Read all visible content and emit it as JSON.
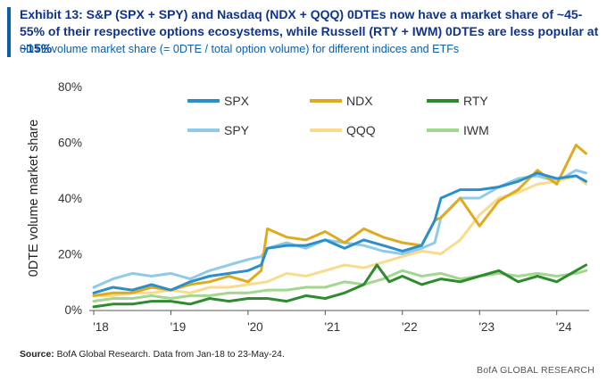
{
  "title": "Exhibit 13: S&P (SPX + SPY) and Nasdaq (NDX + QQQ) 0DTEs now have a market share of ~45-55% of their respective options ecosystems, while Russell (RTY + IWM) 0DTEs are less popular at ~15%",
  "subtitle": "0DTE volume market share (= 0DTE / total option volume) for different indices and ETFs",
  "source_label": "Source:",
  "source_text": "BofA Global Research.  Data from Jan-18 to 23-May-24.",
  "brand": "BofA GLOBAL RESEARCH",
  "chart_data": {
    "type": "line",
    "ylabel": "0DTE volume market share",
    "xlabel": "",
    "ylim": [
      0,
      80
    ],
    "xlim": [
      2018.0,
      2024.42
    ],
    "y_ticks": [
      0,
      20,
      40,
      60,
      80
    ],
    "y_tick_labels": [
      "0%",
      "20%",
      "40%",
      "60%",
      "80%"
    ],
    "x_ticks": [
      2018,
      2019,
      2020,
      2021,
      2022,
      2023,
      2024
    ],
    "x_tick_labels": [
      "'18",
      "'19",
      "'20",
      "'21",
      "'22",
      "'23",
      "'24"
    ],
    "grid": false,
    "legend_position": "top",
    "series": [
      {
        "name": "SPX",
        "color": "#2b8fc9",
        "width": 3,
        "x": [
          2018.0,
          2018.25,
          2018.5,
          2018.75,
          2019.0,
          2019.25,
          2019.5,
          2019.75,
          2020.0,
          2020.17,
          2020.25,
          2020.5,
          2020.75,
          2021.0,
          2021.25,
          2021.5,
          2021.75,
          2022.0,
          2022.25,
          2022.42,
          2022.5,
          2022.75,
          2023.0,
          2023.25,
          2023.5,
          2023.75,
          2024.0,
          2024.25,
          2024.38
        ],
        "y": [
          6,
          8,
          7,
          9,
          7,
          10,
          12,
          13,
          14,
          16,
          22,
          23,
          23,
          25,
          22,
          25,
          23,
          21,
          23,
          32,
          40,
          43,
          43,
          44,
          46,
          49,
          47,
          48,
          46
        ]
      },
      {
        "name": "NDX",
        "color": "#e0aa1e",
        "width": 3,
        "x": [
          2018.0,
          2018.25,
          2018.5,
          2018.75,
          2019.0,
          2019.25,
          2019.5,
          2019.75,
          2020.0,
          2020.17,
          2020.25,
          2020.5,
          2020.75,
          2021.0,
          2021.25,
          2021.5,
          2021.75,
          2022.0,
          2022.25,
          2022.42,
          2022.5,
          2022.75,
          2023.0,
          2023.25,
          2023.5,
          2023.75,
          2024.0,
          2024.25,
          2024.38
        ],
        "y": [
          5,
          6,
          6,
          8,
          7,
          9,
          10,
          12,
          10,
          14,
          29,
          26,
          25,
          28,
          24,
          29,
          26,
          24,
          23,
          32,
          33,
          40,
          30,
          39,
          43,
          50,
          45,
          59,
          56
        ]
      },
      {
        "name": "RTY",
        "color": "#2e8b2e",
        "width": 3,
        "x": [
          2018.0,
          2018.25,
          2018.5,
          2018.75,
          2019.0,
          2019.25,
          2019.5,
          2019.75,
          2020.0,
          2020.25,
          2020.5,
          2020.75,
          2021.0,
          2021.25,
          2021.5,
          2021.67,
          2021.83,
          2022.0,
          2022.25,
          2022.5,
          2022.75,
          2023.0,
          2023.25,
          2023.5,
          2023.75,
          2024.0,
          2024.25,
          2024.38
        ],
        "y": [
          1,
          2,
          2,
          3,
          3,
          2,
          4,
          3,
          4,
          4,
          3,
          5,
          4,
          6,
          9,
          16,
          10,
          12,
          9,
          11,
          10,
          12,
          14,
          10,
          12,
          10,
          14,
          16
        ]
      },
      {
        "name": "SPY",
        "color": "#8fcbe8",
        "width": 3,
        "x": [
          2018.0,
          2018.25,
          2018.5,
          2018.75,
          2019.0,
          2019.25,
          2019.5,
          2019.75,
          2020.0,
          2020.17,
          2020.25,
          2020.5,
          2020.75,
          2021.0,
          2021.25,
          2021.5,
          2021.75,
          2022.0,
          2022.25,
          2022.42,
          2022.5,
          2022.75,
          2023.0,
          2023.25,
          2023.5,
          2023.75,
          2024.0,
          2024.25,
          2024.38
        ],
        "y": [
          8,
          11,
          13,
          12,
          13,
          11,
          14,
          16,
          18,
          19,
          22,
          24,
          22,
          25,
          24,
          23,
          21,
          20,
          22,
          24,
          33,
          40,
          40,
          44,
          47,
          48,
          46,
          50,
          49
        ]
      },
      {
        "name": "QQQ",
        "color": "#f6dc8c",
        "width": 3,
        "x": [
          2018.0,
          2018.25,
          2018.5,
          2018.75,
          2019.0,
          2019.25,
          2019.5,
          2019.75,
          2020.0,
          2020.25,
          2020.5,
          2020.75,
          2021.0,
          2021.25,
          2021.5,
          2021.75,
          2022.0,
          2022.25,
          2022.5,
          2022.75,
          2023.0,
          2023.25,
          2023.5,
          2023.75,
          2024.0,
          2024.25,
          2024.38
        ],
        "y": [
          5,
          5,
          6,
          6,
          7,
          6,
          8,
          8,
          9,
          10,
          13,
          12,
          14,
          16,
          15,
          17,
          19,
          21,
          20,
          25,
          34,
          40,
          42,
          45,
          46,
          48,
          45
        ]
      },
      {
        "name": "IWM",
        "color": "#a3d68e",
        "width": 3,
        "x": [
          2018.0,
          2018.25,
          2018.5,
          2018.75,
          2019.0,
          2019.25,
          2019.5,
          2019.75,
          2020.0,
          2020.25,
          2020.5,
          2020.75,
          2021.0,
          2021.25,
          2021.5,
          2021.75,
          2022.0,
          2022.25,
          2022.5,
          2022.75,
          2023.0,
          2023.25,
          2023.5,
          2023.75,
          2024.0,
          2024.25,
          2024.38
        ],
        "y": [
          3,
          4,
          4,
          5,
          4,
          5,
          5,
          6,
          6,
          7,
          7,
          8,
          8,
          10,
          9,
          11,
          14,
          12,
          13,
          11,
          12,
          13,
          12,
          13,
          12,
          13,
          14
        ]
      }
    ]
  }
}
